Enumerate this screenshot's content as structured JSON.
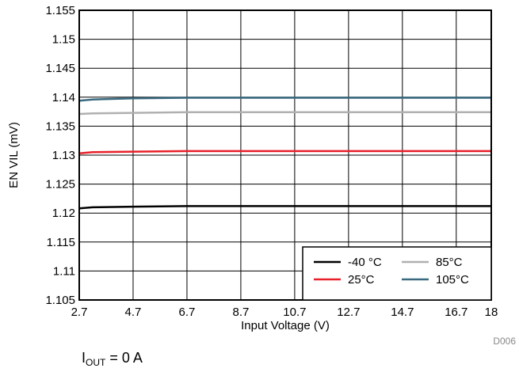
{
  "chart_data": {
    "type": "line",
    "xlabel": "Input Voltage (V)",
    "ylabel": "EN VIL (mV)",
    "xlim": [
      2.7,
      18
    ],
    "ylim": [
      1.105,
      1.155
    ],
    "x_ticks": [
      "2.7",
      "4.7",
      "6.7",
      "8.7",
      "10.7",
      "12.7",
      "14.7",
      "16.7",
      "18"
    ],
    "y_ticks": [
      "1.105",
      "1.11",
      "1.115",
      "1.12",
      "1.125",
      "1.13",
      "1.135",
      "1.14",
      "1.145",
      "1.15",
      "1.155"
    ],
    "grid": true,
    "legend_position": "bottom-right",
    "series": [
      {
        "name": "-40 °C",
        "color": "#000000",
        "x": [
          2.7,
          3.2,
          4.7,
          6.7,
          8.7,
          10.7,
          12.7,
          14.7,
          16.7,
          18
        ],
        "y": [
          1.1208,
          1.121,
          1.1211,
          1.1212,
          1.1212,
          1.1212,
          1.1212,
          1.1212,
          1.1212,
          1.1212
        ]
      },
      {
        "name": "25°C",
        "color": "#e8202a",
        "x": [
          2.7,
          3.2,
          4.7,
          6.7,
          8.7,
          10.7,
          12.7,
          14.7,
          16.7,
          18
        ],
        "y": [
          1.1303,
          1.1305,
          1.1306,
          1.1307,
          1.1307,
          1.1307,
          1.1307,
          1.1307,
          1.1307,
          1.1307
        ]
      },
      {
        "name": "85°C",
        "color": "#b0b0b0",
        "x": [
          2.7,
          3.2,
          4.7,
          6.7,
          8.7,
          10.7,
          12.7,
          14.7,
          16.7,
          18
        ],
        "y": [
          1.1371,
          1.1372,
          1.1373,
          1.1374,
          1.1374,
          1.1374,
          1.1374,
          1.1374,
          1.1374,
          1.1374
        ]
      },
      {
        "name": "105°C",
        "color": "#3a6a80",
        "x": [
          2.7,
          3.2,
          4.7,
          6.7,
          8.7,
          10.7,
          12.7,
          14.7,
          16.7,
          18
        ],
        "y": [
          1.1394,
          1.1396,
          1.1398,
          1.1399,
          1.1399,
          1.1399,
          1.1399,
          1.1399,
          1.1399,
          1.1399
        ]
      }
    ]
  },
  "tag": "D006",
  "condition": {
    "main": "I",
    "sub": "OUT",
    "rest": " = 0 A"
  }
}
